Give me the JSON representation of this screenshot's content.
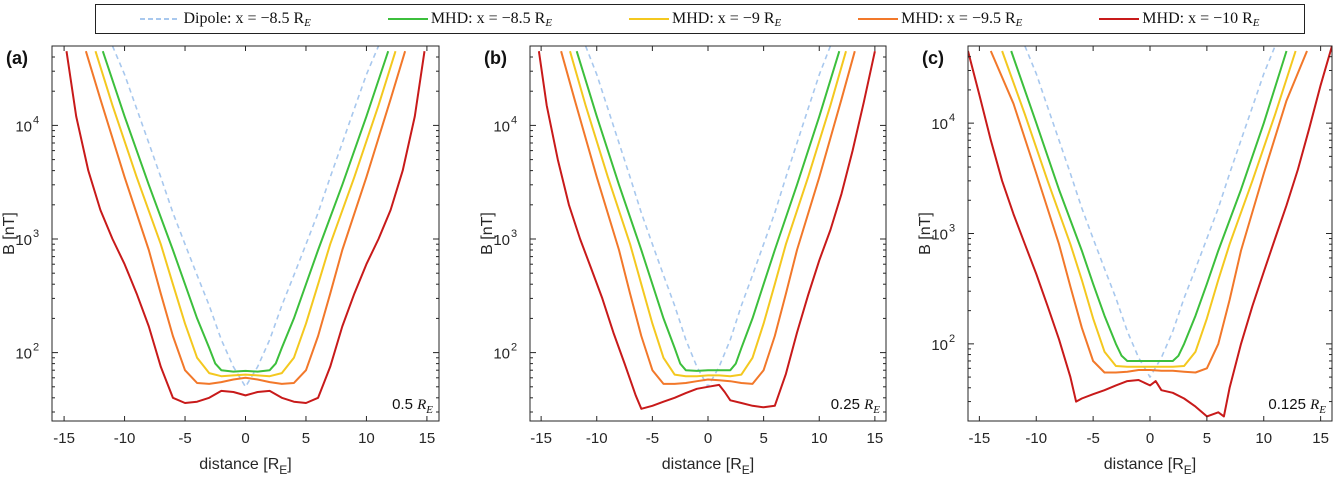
{
  "legend": [
    {
      "label": "Dipole: x = −8.5 R",
      "sub": "E",
      "color": "#a8c8ee",
      "dashed": true
    },
    {
      "label": "MHD: x = −8.5 R",
      "sub": "E",
      "color": "#3cbf3c",
      "dashed": false
    },
    {
      "label": "MHD: x = −9 R",
      "sub": "E",
      "color": "#f4c81f",
      "dashed": false
    },
    {
      "label": "MHD: x = −9.5 R",
      "sub": "E",
      "color": "#f2782a",
      "dashed": false
    },
    {
      "label": "MHD: x = −10 R",
      "sub": "E",
      "color": "#c81a1a",
      "dashed": false
    }
  ],
  "chart_data": [
    {
      "type": "line",
      "panel_label": "(a)",
      "resolution_label": "0.5",
      "resolution_unit": "R",
      "resolution_sub": "E",
      "xlabel": "distance [R",
      "xlabel_sub": "E",
      "xlabel_end": "]",
      "ylabel": "B [nT]",
      "xlim": [
        -16,
        16
      ],
      "ylim": [
        25,
        50000
      ],
      "yscale": "log",
      "xticks": [
        -15,
        -10,
        -5,
        0,
        5,
        10,
        15
      ],
      "yticks": [
        100,
        1000,
        10000
      ],
      "ytick_labels": [
        "10",
        "10",
        "10"
      ],
      "ytick_exp": [
        "2",
        "3",
        "4"
      ],
      "series": [
        {
          "name": "Dipole",
          "x": [
            -11,
            -10,
            -9,
            -8,
            -7,
            -6,
            -5,
            -4,
            -3,
            -2,
            -1,
            0,
            1,
            2,
            3,
            4,
            5,
            6,
            7,
            8,
            9,
            10,
            11
          ],
          "y": [
            50000,
            28000,
            14000,
            7000,
            3500,
            1700,
            900,
            480,
            260,
            130,
            75,
            50,
            75,
            130,
            260,
            480,
            900,
            1700,
            3500,
            7000,
            14000,
            28000,
            50000
          ]
        },
        {
          "name": "MHD: x = −8.5",
          "x": [
            -11.8,
            -10,
            -8,
            -6,
            -5,
            -4,
            -3,
            -2.5,
            -2,
            -1,
            0,
            1,
            2,
            2.5,
            3,
            4,
            5,
            6,
            8,
            10,
            11.8
          ],
          "y": [
            45000,
            12000,
            3000,
            800,
            400,
            200,
            110,
            80,
            70,
            68,
            69,
            68,
            70,
            80,
            110,
            200,
            400,
            800,
            3000,
            12000,
            45000
          ]
        },
        {
          "name": "MHD: x = −9",
          "x": [
            -12.4,
            -11,
            -9,
            -7,
            -6,
            -5,
            -4,
            -3,
            -2,
            -1,
            0,
            1,
            2,
            3,
            4,
            5,
            6,
            7,
            9,
            11,
            12.4
          ],
          "y": [
            45000,
            15000,
            3500,
            900,
            400,
            180,
            90,
            66,
            62,
            63,
            64,
            63,
            62,
            66,
            90,
            180,
            400,
            900,
            3500,
            15000,
            45000
          ]
        },
        {
          "name": "MHD: x = −9.5",
          "x": [
            -13.2,
            -12,
            -10,
            -8,
            -7,
            -6,
            -5,
            -4,
            -3,
            -2,
            -1,
            0,
            1,
            2,
            3,
            4,
            5,
            6,
            7,
            8,
            10,
            12,
            13.2
          ],
          "y": [
            45000,
            17000,
            3500,
            800,
            330,
            140,
            70,
            54,
            53,
            55,
            58,
            60,
            58,
            55,
            53,
            54,
            70,
            140,
            330,
            800,
            3500,
            17000,
            45000
          ]
        },
        {
          "name": "MHD: x = −10",
          "x": [
            -14.8,
            -14,
            -13,
            -12,
            -11,
            -10,
            -9,
            -8,
            -7,
            -6,
            -5,
            -4,
            -3,
            -2,
            -1,
            0,
            1,
            2,
            3,
            4,
            5,
            6,
            7,
            8,
            9,
            10,
            11,
            12,
            13,
            14,
            14.8
          ],
          "y": [
            45000,
            12000,
            4000,
            1800,
            1000,
            600,
            330,
            170,
            75,
            40,
            36,
            37,
            40,
            46,
            45,
            42,
            45,
            46,
            40,
            37,
            36,
            40,
            75,
            170,
            330,
            600,
            1000,
            1800,
            4000,
            12000,
            45000
          ]
        }
      ]
    },
    {
      "type": "line",
      "panel_label": "(b)",
      "resolution_label": "0.25",
      "resolution_unit": "R",
      "resolution_sub": "E",
      "xlabel": "distance [R",
      "xlabel_sub": "E",
      "xlabel_end": "]",
      "ylabel": "B [nT]",
      "xlim": [
        -16,
        16
      ],
      "ylim": [
        25,
        50000
      ],
      "yscale": "log",
      "xticks": [
        -15,
        -10,
        -5,
        0,
        5,
        10,
        15
      ],
      "yticks": [
        100,
        1000,
        10000
      ],
      "ytick_labels": [
        "10",
        "10",
        "10"
      ],
      "ytick_exp": [
        "2",
        "3",
        "4"
      ],
      "series": [
        {
          "name": "Dipole",
          "x": [
            -11,
            -10,
            -9,
            -8,
            -7,
            -6,
            -5,
            -4,
            -3,
            -2,
            -1,
            0,
            1,
            2,
            3,
            4,
            5,
            6,
            7,
            8,
            9,
            10,
            11
          ],
          "y": [
            50000,
            28000,
            14000,
            7000,
            3500,
            1700,
            900,
            480,
            260,
            130,
            75,
            50,
            75,
            130,
            260,
            480,
            900,
            1700,
            3500,
            7000,
            14000,
            28000,
            50000
          ]
        },
        {
          "name": "MHD: x = −8.5",
          "x": [
            -11.8,
            -10,
            -8,
            -6,
            -5,
            -4,
            -3,
            -2.5,
            -2,
            -1,
            0,
            1,
            2,
            2.5,
            3,
            4,
            5,
            6,
            8,
            10,
            11.8
          ],
          "y": [
            45000,
            12000,
            3000,
            800,
            400,
            200,
            110,
            80,
            70,
            69,
            70,
            70,
            70,
            80,
            110,
            200,
            400,
            800,
            3000,
            12000,
            45000
          ]
        },
        {
          "name": "MHD: x = −9",
          "x": [
            -12.4,
            -11,
            -9,
            -7,
            -6,
            -5,
            -4,
            -3,
            -2,
            -1,
            0,
            1,
            2,
            3,
            4,
            5,
            6,
            7,
            9,
            11,
            12.4
          ],
          "y": [
            45000,
            15000,
            3500,
            900,
            400,
            180,
            90,
            64,
            62,
            62,
            63,
            63,
            62,
            64,
            90,
            180,
            400,
            900,
            3500,
            15000,
            45000
          ]
        },
        {
          "name": "MHD: x = −9.5",
          "x": [
            -13.2,
            -12,
            -10,
            -8,
            -7,
            -6,
            -5,
            -4,
            -3,
            -2,
            -1,
            0,
            1,
            2,
            3,
            4,
            5,
            6,
            7,
            8,
            10,
            12,
            13.2
          ],
          "y": [
            45000,
            17000,
            3500,
            800,
            330,
            140,
            70,
            53,
            53,
            54,
            56,
            58,
            57,
            56,
            54,
            53,
            70,
            140,
            330,
            800,
            3500,
            17000,
            45000
          ]
        },
        {
          "name": "MHD: x = −10",
          "x": [
            -15.2,
            -14.5,
            -13.5,
            -12.5,
            -11.5,
            -10.5,
            -9.5,
            -8.5,
            -7.5,
            -6.5,
            -6,
            -5,
            -4,
            -3,
            -2,
            -1,
            0,
            1,
            1.5,
            2,
            3,
            4,
            5,
            6,
            7,
            8,
            9,
            10,
            11,
            12,
            13,
            14,
            15
          ],
          "y": [
            45000,
            15000,
            5000,
            2000,
            1000,
            550,
            300,
            150,
            80,
            42,
            32,
            34,
            37,
            40,
            44,
            48,
            50,
            52,
            45,
            38,
            36,
            34,
            33,
            34,
            65,
            150,
            320,
            650,
            1200,
            2500,
            6000,
            16000,
            45000
          ]
        }
      ]
    },
    {
      "type": "line",
      "panel_label": "(c)",
      "resolution_label": "0.125",
      "resolution_unit": "R",
      "resolution_sub": "E",
      "xlabel": "distance [R",
      "xlabel_sub": "E",
      "xlabel_end": "]",
      "ylabel": "B [nT]",
      "xlim": [
        -16,
        16
      ],
      "ylim": [
        20,
        50000
      ],
      "yscale": "log",
      "xticks": [
        -15,
        -10,
        -5,
        0,
        5,
        10,
        15
      ],
      "yticks": [
        100,
        1000,
        10000
      ],
      "ytick_labels": [
        "10",
        "10",
        "10"
      ],
      "ytick_exp": [
        "2",
        "3",
        "4"
      ],
      "series": [
        {
          "name": "Dipole",
          "x": [
            -11,
            -10,
            -9,
            -8,
            -7,
            -6,
            -5,
            -4,
            -3,
            -2,
            -1,
            0,
            1,
            2,
            3,
            4,
            5,
            6,
            7,
            8,
            9,
            10,
            11
          ],
          "y": [
            50000,
            28000,
            14000,
            7000,
            3500,
            1700,
            900,
            480,
            260,
            130,
            75,
            50,
            75,
            130,
            260,
            480,
            900,
            1700,
            3500,
            7000,
            14000,
            28000,
            50000
          ]
        },
        {
          "name": "MHD: x = −8.5",
          "x": [
            -12.2,
            -10,
            -8,
            -6,
            -5,
            -4,
            -3,
            -2.5,
            -2,
            -1,
            0,
            1,
            2,
            2.5,
            3,
            4,
            5,
            6,
            8,
            10,
            12
          ],
          "y": [
            45000,
            10000,
            2500,
            700,
            350,
            180,
            100,
            78,
            70,
            70,
            70,
            70,
            70,
            78,
            100,
            180,
            350,
            700,
            2500,
            10000,
            45000
          ]
        },
        {
          "name": "MHD: x = −9",
          "x": [
            -13,
            -11,
            -9,
            -7,
            -6,
            -5,
            -4,
            -3,
            -2,
            -1,
            0,
            1,
            2,
            3,
            4,
            5,
            6,
            7,
            9,
            11,
            12.8
          ],
          "y": [
            45000,
            12000,
            3000,
            800,
            380,
            170,
            85,
            63,
            62,
            62,
            62,
            62,
            62,
            63,
            85,
            170,
            380,
            800,
            3000,
            12000,
            45000
          ]
        },
        {
          "name": "MHD: x = −9.5",
          "x": [
            -14,
            -12,
            -10,
            -8,
            -7,
            -6,
            -5,
            -4,
            -3,
            -2,
            -1,
            0,
            1,
            2,
            3,
            4,
            5,
            6,
            7,
            8,
            10,
            12,
            13.8
          ],
          "y": [
            45000,
            15000,
            3500,
            800,
            330,
            140,
            70,
            55,
            55,
            56,
            58,
            58,
            57,
            57,
            56,
            55,
            60,
            100,
            250,
            700,
            3500,
            16000,
            45000
          ]
        },
        {
          "name": "MHD: x = −10",
          "x": [
            -16,
            -15,
            -14,
            -13,
            -12,
            -11,
            -10,
            -9,
            -8,
            -7,
            -6.5,
            -6,
            -5,
            -4,
            -3,
            -2,
            -1,
            0,
            0.5,
            1,
            2,
            3,
            4,
            5,
            6,
            6.5,
            7,
            8,
            9,
            10,
            11,
            12,
            13,
            14,
            15,
            16
          ],
          "y": [
            45000,
            18000,
            7000,
            3000,
            1500,
            800,
            430,
            220,
            110,
            50,
            30,
            32,
            35,
            38,
            42,
            46,
            47,
            42,
            46,
            38,
            36,
            32,
            27,
            22,
            24,
            22,
            40,
            100,
            220,
            450,
            900,
            1800,
            3800,
            9000,
            22000,
            50000
          ]
        }
      ]
    }
  ]
}
